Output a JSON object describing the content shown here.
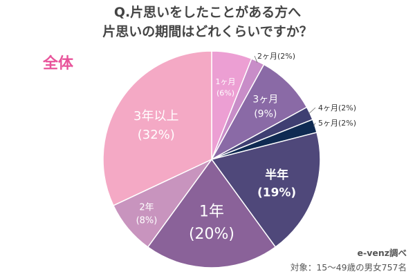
{
  "title_line1": "Q.片思いをしたことがある方へ",
  "title_line2": "片思いの期間はどれくらいですか？",
  "group_label": "全体",
  "source": "e-venz調べ",
  "subject": "対象：15〜49歳の男女757名",
  "chart_data": {
    "type": "pie",
    "slices": [
      {
        "label": "1ヶ月",
        "pct_label": "(6%)",
        "value": 6,
        "color": "#ec9fd3"
      },
      {
        "label": "2ヶ月",
        "pct_label": "(2%)",
        "value": 2,
        "color": "#c88dc8"
      },
      {
        "label": "3ヶ月",
        "pct_label": "(9%)",
        "value": 9,
        "color": "#8a6aa6"
      },
      {
        "label": "4ヶ月",
        "pct_label": "(2%)",
        "value": 2,
        "color": "#3f3f72"
      },
      {
        "label": "5ヶ月",
        "pct_label": "(2%)",
        "value": 2,
        "color": "#0f2a52"
      },
      {
        "label": "半年",
        "pct_label": "(19%)",
        "value": 19,
        "color": "#4f487a"
      },
      {
        "label": "1年",
        "pct_label": "(20%)",
        "value": 20,
        "color": "#8a6299"
      },
      {
        "label": "2年",
        "pct_label": "(8%)",
        "value": 8,
        "color": "#c894be"
      },
      {
        "label": "3年以上",
        "pct_label": "(32%)",
        "value": 32,
        "color": "#f4a9c5"
      }
    ]
  }
}
